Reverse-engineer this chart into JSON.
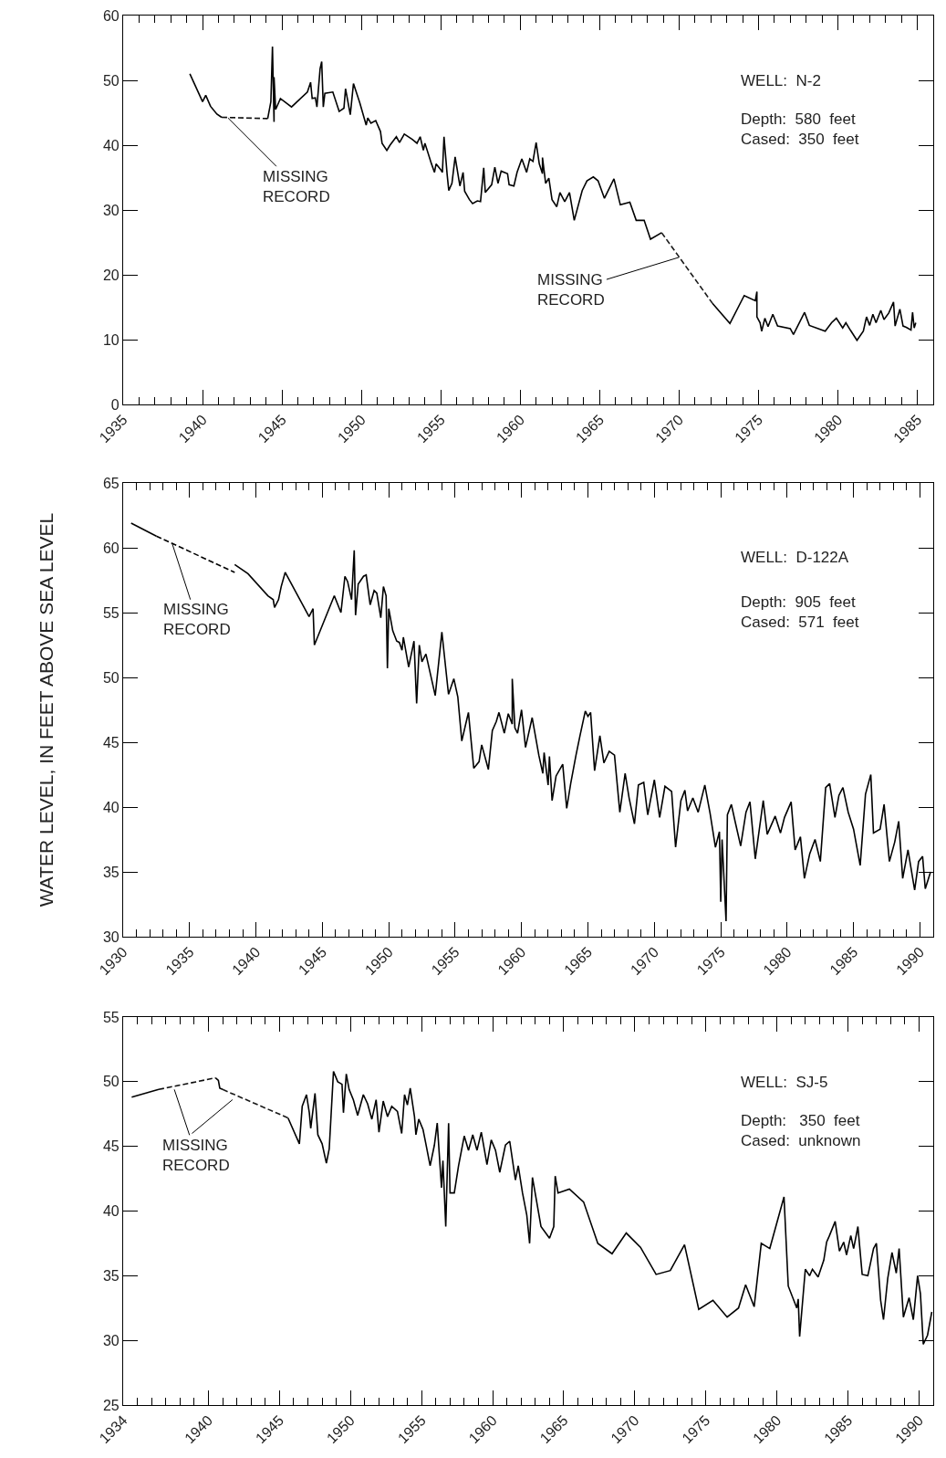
{
  "chart_data": [
    {
      "type": "line",
      "xlim": [
        1935,
        1986
      ],
      "xticks": [
        1935,
        1940,
        1945,
        1950,
        1955,
        1960,
        1965,
        1970,
        1975,
        1980,
        1985
      ],
      "ylim": [
        0,
        60
      ],
      "yticks": [
        0,
        10,
        20,
        30,
        40,
        50,
        60
      ],
      "series": [
        {
          "color": "#000000",
          "line_style": "solid",
          "x": [
            1939.2,
            1940.0,
            1940.2,
            1940.5,
            1940.9,
            1941.2,
            1942.5,
            1944.1,
            1944.3,
            1944.4,
            1944.5,
            1944.5,
            1944.6,
            1944.9,
            1945.6,
            1946.6,
            1946.8,
            1946.9,
            1947.1,
            1947.2,
            1947.4,
            1947.5,
            1947.6,
            1947.7,
            1948.2,
            1948.6,
            1948.9,
            1949.0,
            1949.3,
            1949.5,
            1949.9,
            1950.3,
            1950.4,
            1950.6,
            1950.9,
            1951.2,
            1951.3,
            1951.6,
            1951.8,
            1952.2,
            1952.4,
            1952.7,
            1953.2,
            1953.5,
            1953.7,
            1953.9,
            1954.0,
            1954.4,
            1954.6,
            1954.7,
            1955.0,
            1955.1,
            1955.2,
            1955.4,
            1955.5,
            1955.7,
            1955.9,
            1956.2,
            1956.4,
            1956.5,
            1956.8,
            1957.0,
            1957.3,
            1957.5,
            1957.7,
            1957.8,
            1958.2,
            1958.4,
            1958.6,
            1958.8,
            1959.2,
            1959.3,
            1959.6,
            1959.8,
            1960.1,
            1960.4,
            1960.6,
            1960.8,
            1961.0,
            1961.2,
            1961.4,
            1961.4,
            1961.6,
            1961.8,
            1962.0,
            1962.3,
            1962.5,
            1962.8,
            1963.1,
            1963.4,
            1963.9,
            1964.2,
            1964.6,
            1964.9,
            1965.3,
            1965.9,
            1966.3,
            1966.9,
            1967.3,
            1967.8,
            1968.2,
            1968.9,
            1970.5,
            1972.1,
            1973.2,
            1974.1,
            1974.8,
            1974.9,
            1974.9,
            1975.1,
            1975.2,
            1975.4,
            1975.6,
            1975.9,
            1976.2,
            1977.0,
            1977.2,
            1977.9,
            1978.2,
            1979.2,
            1979.6,
            1979.9,
            1980.3,
            1980.5,
            1980.8,
            1981.2,
            1981.6,
            1981.8,
            1982.0,
            1982.2,
            1982.4,
            1982.7,
            1982.9,
            1983.2,
            1983.5,
            1983.6,
            1983.9,
            1984.1,
            1984.3,
            1984.6,
            1984.7,
            1984.8,
            1984.9
          ],
          "values": [
            51.0,
            46.7,
            47.7,
            46.0,
            44.8,
            44.3,
            null,
            44.1,
            46.7,
            55.2,
            43.6,
            50.5,
            45.5,
            47.2,
            45.9,
            48.2,
            49.7,
            47.2,
            47.3,
            45.9,
            51.8,
            52.9,
            45.9,
            48.0,
            48.2,
            45.2,
            45.7,
            48.7,
            44.7,
            49.5,
            46.5,
            43.1,
            44.2,
            43.4,
            43.8,
            42.1,
            40.3,
            39.2,
            40.0,
            41.3,
            40.4,
            41.7,
            40.9,
            40.3,
            41.3,
            39.2,
            40.3,
            37.2,
            35.8,
            37.1,
            36.2,
            35.8,
            41.3,
            35.4,
            33.0,
            34.1,
            38.2,
            33.7,
            35.8,
            32.9,
            31.6,
            31.0,
            31.4,
            31.3,
            36.5,
            32.7,
            33.9,
            36.6,
            34.1,
            36.0,
            35.6,
            33.9,
            33.7,
            35.8,
            37.9,
            35.8,
            37.9,
            37.5,
            40.4,
            37.1,
            35.6,
            38.1,
            34.1,
            34.9,
            31.6,
            30.5,
            32.7,
            31.3,
            32.7,
            28.4,
            33.0,
            34.5,
            35.1,
            34.5,
            31.8,
            34.8,
            30.8,
            31.2,
            28.4,
            28.4,
            25.5,
            26.5,
            null,
            15.6,
            12.5,
            16.8,
            16.0,
            17.4,
            13.5,
            12.6,
            11.3,
            13.3,
            12.0,
            13.9,
            12.1,
            11.7,
            10.8,
            14.2,
            12.2,
            11.3,
            12.6,
            13.3,
            11.8,
            12.6,
            11.4,
            9.9,
            11.3,
            13.5,
            12.2,
            13.9,
            12.6,
            14.5,
            13.1,
            14.1,
            15.8,
            12.1,
            14.7,
            12.1,
            11.9,
            11.5,
            14.2,
            11.8,
            12.6
          ]
        },
        {
          "color": "#0d0d0d",
          "line_style": "dashed",
          "x": [
            1941.2,
            1944.1
          ],
          "values": [
            44.3,
            44.1
          ]
        },
        {
          "color": "#1a1a1a",
          "line_style": "dashed",
          "x": [
            1968.9,
            1972.1
          ],
          "values": [
            26.5,
            15.6
          ]
        }
      ],
      "annotations": [
        {
          "text": "MISSING\nRECORD",
          "x": 1941.6,
          "y": 44.2
        },
        {
          "text": "MISSING\nRECORD",
          "x": 1970.0,
          "y": 22.7
        },
        "WELL:  N-2",
        "Depth:  580  feet\nCased:  350  feet"
      ]
    },
    {
      "type": "line",
      "xlim": [
        1930,
        1991
      ],
      "xticks": [
        1930,
        1935,
        1940,
        1945,
        1950,
        1955,
        1960,
        1965,
        1970,
        1975,
        1980,
        1985,
        1990
      ],
      "ylim": [
        30,
        65
      ],
      "yticks": [
        30,
        35,
        40,
        45,
        50,
        55,
        60,
        65
      ],
      "ylabel": "WATER LEVEL, IN FEET ABOVE SEA LEVEL",
      "series": [
        {
          "color": "#000000",
          "line_style": "solid",
          "x": [
            1930.6,
            1932.5,
            1935.5,
            1938.4,
            1939.4,
            1940.9,
            1941.3,
            1941.4,
            1941.7,
            1941.9,
            1942.2,
            1944.0,
            1944.3,
            1944.4,
            1945.9,
            1946.4,
            1946.7,
            1946.9,
            1947.2,
            1947.4,
            1947.5,
            1947.7,
            1948.1,
            1948.3,
            1948.6,
            1948.9,
            1949.1,
            1949.4,
            1949.6,
            1949.8,
            1949.9,
            1950.0,
            1950.3,
            1950.6,
            1950.8,
            1951.0,
            1951.1,
            1951.5,
            1951.9,
            1952.1,
            1952.3,
            1952.5,
            1952.8,
            1953.5,
            1954.0,
            1954.5,
            1954.9,
            1955.2,
            1955.5,
            1956.0,
            1956.4,
            1956.8,
            1957.0,
            1957.5,
            1957.8,
            1958.1,
            1958.3,
            1958.7,
            1959.0,
            1959.3,
            1959.3,
            1959.5,
            1959.7,
            1960.0,
            1960.3,
            1960.8,
            1961.3,
            1961.6,
            1961.7,
            1962.0,
            1962.1,
            1962.3,
            1962.6,
            1963.1,
            1963.4,
            1963.7,
            1964.1,
            1964.4,
            1964.8,
            1965.0,
            1965.2,
            1965.5,
            1965.9,
            1966.2,
            1966.6,
            1967.0,
            1967.4,
            1967.8,
            1968.1,
            1968.5,
            1968.8,
            1969.2,
            1969.5,
            1970.0,
            1970.4,
            1970.8,
            1971.3,
            1971.6,
            1972.0,
            1972.3,
            1972.5,
            1972.9,
            1973.3,
            1973.8,
            1974.2,
            1974.6,
            1974.9,
            1975.0,
            1975.1,
            1975.4,
            1975.5,
            1975.8,
            1976.1,
            1976.5,
            1976.9,
            1977.2,
            1977.6,
            1978.2,
            1978.5,
            1979.1,
            1979.5,
            1979.8,
            1980.3,
            1980.6,
            1981.0,
            1981.3,
            1981.7,
            1982.1,
            1982.5,
            1982.9,
            1983.2,
            1983.6,
            1983.9,
            1984.2,
            1984.6,
            1985.0,
            1985.5,
            1985.9,
            1986.3,
            1986.5,
            1987.0,
            1987.3,
            1987.7,
            1988.1,
            1988.4,
            1988.7,
            1989.1,
            1989.6,
            1989.9,
            1990.2,
            1990.4,
            1990.8
          ],
          "values": [
            61.9,
            60.9,
            null,
            58.7,
            58.0,
            56.3,
            56.0,
            55.4,
            56.0,
            57.0,
            58.1,
            54.7,
            55.3,
            52.5,
            56.3,
            55.0,
            57.8,
            57.4,
            56.0,
            59.8,
            54.8,
            57.2,
            57.8,
            57.9,
            55.6,
            56.7,
            56.5,
            54.6,
            57.0,
            56.3,
            50.7,
            55.3,
            53.6,
            52.8,
            52.7,
            52.1,
            53.1,
            50.8,
            52.8,
            48.0,
            52.5,
            51.2,
            51.8,
            48.6,
            53.5,
            48.7,
            49.9,
            48.5,
            45.1,
            47.3,
            43.0,
            43.5,
            44.8,
            42.9,
            45.9,
            46.6,
            47.3,
            45.7,
            47.2,
            46.4,
            49.9,
            46.1,
            45.7,
            47.5,
            44.6,
            46.9,
            44.0,
            42.6,
            44.2,
            41.7,
            43.9,
            40.5,
            42.4,
            43.3,
            39.9,
            41.8,
            44.0,
            45.5,
            47.4,
            47.0,
            47.3,
            42.8,
            45.5,
            43.4,
            44.3,
            44.0,
            39.6,
            42.6,
            40.7,
            38.7,
            41.7,
            41.9,
            39.4,
            42.1,
            39.2,
            41.6,
            41.2,
            36.9,
            40.5,
            41.3,
            39.7,
            40.7,
            39.6,
            41.7,
            39.5,
            36.9,
            38.1,
            32.7,
            37.5,
            31.2,
            39.4,
            40.2,
            38.8,
            37.0,
            39.6,
            40.4,
            36.0,
            40.5,
            37.9,
            39.3,
            38.0,
            39.2,
            40.4,
            36.7,
            37.7,
            34.5,
            36.4,
            37.5,
            35.8,
            41.5,
            41.8,
            39.2,
            40.9,
            41.5,
            39.6,
            38.3,
            35.5,
            41.0,
            42.5,
            38.0,
            38.3,
            40.2,
            35.8,
            37.3,
            38.9,
            34.5,
            36.7,
            33.6,
            35.8,
            36.2,
            33.7,
            35.0
          ]
        },
        {
          "color": "#000000",
          "line_style": "dashed",
          "x": [
            1932.5,
            1938.4
          ],
          "values": [
            60.9,
            58.1
          ]
        }
      ],
      "annotations": [
        {
          "text": "MISSING\nRECORD",
          "x": 1933.7,
          "y": 60.3
        },
        "WELL:  D-122A",
        "Depth:  905  feet\nCased:  571  feet"
      ]
    },
    {
      "type": "line",
      "xlim": [
        1934,
        1991
      ],
      "xticks": [
        1934,
        1940,
        1945,
        1950,
        1955,
        1960,
        1965,
        1970,
        1975,
        1980,
        1985,
        1990
      ],
      "ylim": [
        25,
        55
      ],
      "yticks": [
        25,
        30,
        35,
        40,
        45,
        50,
        55
      ],
      "series": [
        {
          "color": "#000000",
          "line_style": "solid",
          "x": [
            1934.6,
            1936.5,
            1938.5,
            1940.5,
            1940.7,
            1940.8,
            1941.0,
            1943.0,
            1945.6,
            1946.4,
            1946.6,
            1946.9,
            1947.1,
            1947.2,
            1947.5,
            1947.7,
            1948.0,
            1948.3,
            1948.5,
            1948.8,
            1949.1,
            1949.4,
            1949.5,
            1949.7,
            1949.9,
            1950.2,
            1950.5,
            1950.9,
            1951.2,
            1951.5,
            1951.8,
            1952.0,
            1952.3,
            1952.6,
            1952.9,
            1953.3,
            1953.6,
            1953.8,
            1954.0,
            1954.2,
            1954.5,
            1954.6,
            1954.8,
            1955.1,
            1955.3,
            1955.6,
            1955.9,
            1956.1,
            1956.4,
            1956.5,
            1956.7,
            1956.9,
            1957.0,
            1957.3,
            1957.6,
            1958.0,
            1958.3,
            1958.6,
            1958.9,
            1959.2,
            1959.6,
            1959.9,
            1960.2,
            1960.5,
            1960.9,
            1961.2,
            1961.6,
            1961.8,
            1962.1,
            1962.4,
            1962.6,
            1962.8,
            1963.4,
            1964.0,
            1964.3,
            1964.4,
            1964.6,
            1965.4,
            1966.4,
            1967.4,
            1968.4,
            1969.4,
            1970.4,
            1971.5,
            1972.5,
            1973.5,
            1974.5,
            1975.5,
            1976.5,
            1977.3,
            1977.8,
            1978.4,
            1978.9,
            1979.5,
            1980.5,
            1980.8,
            1981.4,
            1981.5,
            1981.6,
            1982.0,
            1982.3,
            1982.5,
            1982.9,
            1983.3,
            1983.5,
            1983.7,
            1984.1,
            1984.4,
            1984.7,
            1984.9,
            1985.2,
            1985.4,
            1985.7,
            1986.0,
            1986.4,
            1986.8,
            1987.0,
            1987.3,
            1987.5,
            1987.8,
            1988.1,
            1988.4,
            1988.6,
            1988.9,
            1989.3,
            1989.6,
            1989.9,
            1990.1,
            1990.3,
            1990.6,
            1990.9
          ],
          "values": [
            48.8,
            49.4,
            null,
            50.3,
            50.1,
            49.5,
            49.4,
            null,
            47.2,
            45.2,
            48.1,
            49.0,
            47.6,
            46.4,
            49.1,
            45.9,
            45.2,
            43.7,
            44.8,
            50.8,
            50.0,
            49.8,
            47.6,
            50.6,
            49.4,
            48.6,
            47.4,
            49.0,
            48.3,
            47.1,
            48.6,
            46.1,
            48.5,
            47.3,
            48.1,
            47.7,
            46.0,
            49.0,
            48.2,
            49.5,
            47.3,
            45.9,
            47.1,
            46.3,
            45.2,
            43.5,
            45.1,
            46.8,
            41.8,
            43.9,
            38.8,
            46.8,
            41.4,
            41.4,
            43.5,
            45.8,
            44.7,
            45.9,
            44.7,
            46.1,
            43.6,
            45.5,
            44.7,
            43.0,
            45.1,
            45.4,
            42.4,
            43.5,
            41.4,
            39.7,
            37.5,
            42.6,
            38.8,
            37.9,
            38.8,
            42.7,
            41.4,
            41.7,
            40.7,
            37.5,
            36.7,
            38.3,
            37.2,
            35.1,
            35.4,
            37.4,
            32.4,
            33.1,
            31.8,
            32.5,
            34.3,
            32.6,
            37.5,
            37.1,
            41.1,
            34.2,
            32.5,
            33.2,
            30.3,
            35.5,
            35.0,
            35.5,
            34.9,
            36.2,
            37.6,
            38.1,
            39.2,
            36.9,
            37.6,
            36.6,
            38.1,
            37.1,
            38.8,
            35.1,
            35.0,
            37.1,
            37.5,
            33.1,
            31.6,
            34.8,
            36.8,
            35.2,
            37.1,
            31.8,
            33.3,
            31.6,
            35.0,
            33.6,
            29.7,
            30.4,
            32.2
          ]
        },
        {
          "color": "#0d0d0d",
          "line_style": "dashed",
          "x": [
            1936.5,
            1940.5
          ],
          "values": [
            49.4,
            50.3
          ]
        },
        {
          "color": "#1a1a1a",
          "line_style": "dashed",
          "x": [
            1941.0,
            1945.6
          ],
          "values": [
            49.4,
            47.2
          ]
        }
      ],
      "annotations": [
        {
          "text": "MISSING\nRECORD",
          "x": 1937.6,
          "y": 49.4
        },
        "WELL:  SJ-5",
        "Depth:   350  feet\nCased:  unknown"
      ]
    }
  ]
}
